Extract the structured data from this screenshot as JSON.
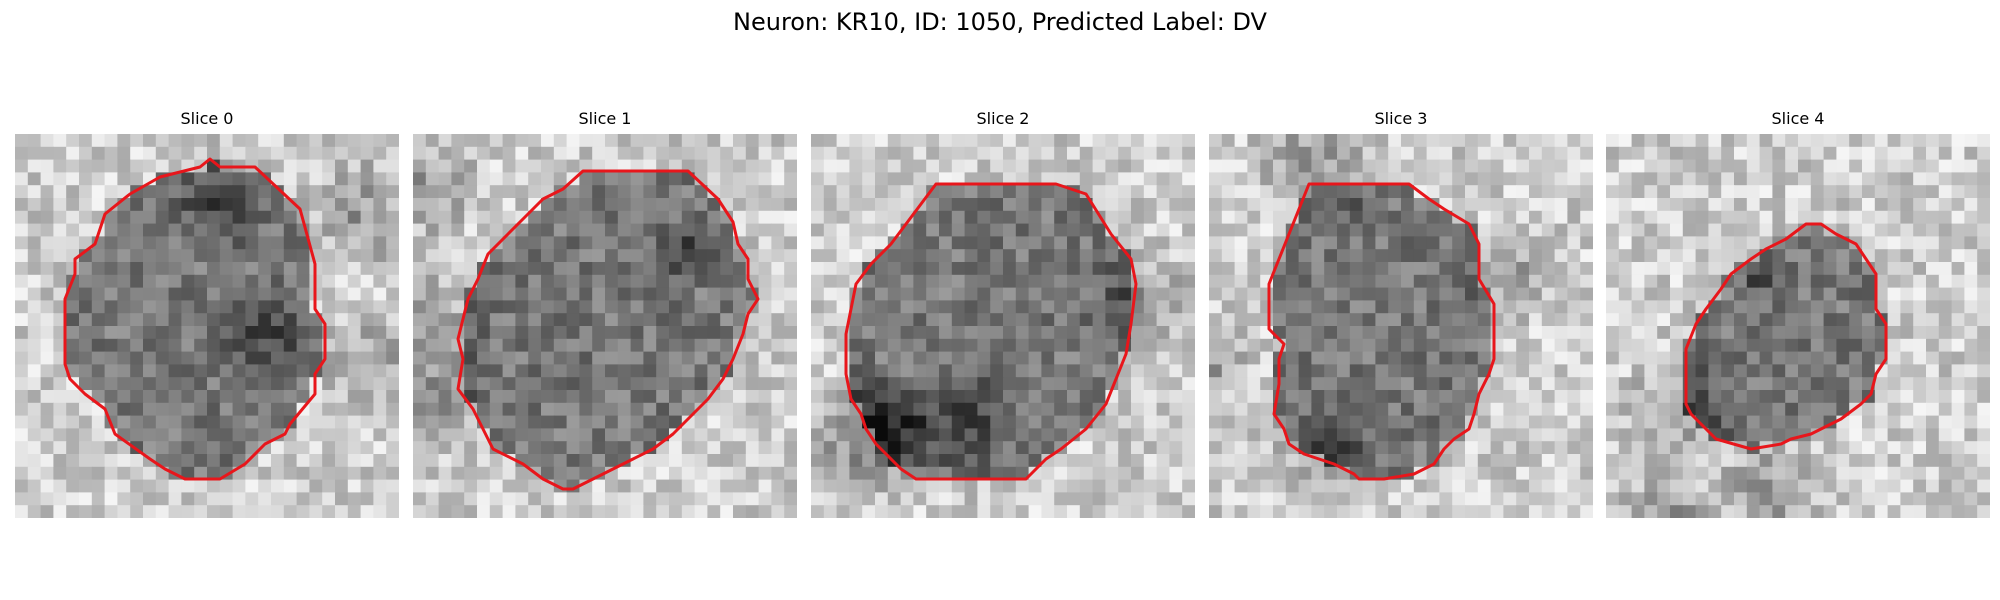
{
  "title": "Neuron: KR10, ID: 1050, Predicted Label: DV",
  "colors": {
    "contour": "#e8161b",
    "background": "#ffffff",
    "colormap": "grayscale"
  },
  "panels": [
    {
      "label": "Slice 0"
    },
    {
      "label": "Slice 1"
    },
    {
      "label": "Slice 2"
    },
    {
      "label": "Slice 3"
    },
    {
      "label": "Slice 4"
    }
  ]
}
